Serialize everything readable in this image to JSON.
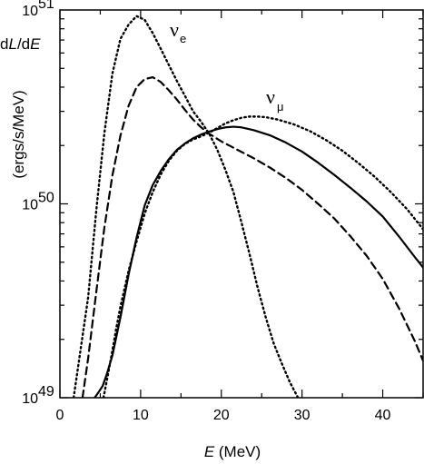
{
  "chart_data": {
    "type": "line",
    "xlabel": {
      "var": "E",
      "rest": " (MeV)"
    },
    "ylabel": {
      "prefix": "d",
      "var1": "L",
      "mid": "/d",
      "var2": "E",
      "units": "(ergs/s/MeV)"
    },
    "xlim": [
      0,
      45
    ],
    "ylim": [
      1e+49,
      1e+51
    ],
    "yscale": "log",
    "grid": false,
    "x_ticks": [
      0,
      10,
      20,
      30,
      40
    ],
    "x_tick_labels": [
      "0",
      "10",
      "20",
      "30",
      "40"
    ],
    "y_ticks": [
      {
        "value": 1e+49,
        "base": "10",
        "exp": "49"
      },
      {
        "value": 1e+50,
        "base": "10",
        "exp": "50"
      },
      {
        "value": 1e+51,
        "base": "10",
        "exp": "51"
      }
    ],
    "series": [
      {
        "label_base": "ν",
        "label_sub": "e",
        "style": "dotted",
        "x": [
          1.7,
          2.5,
          3.5,
          4.5,
          5.5,
          6.5,
          7.5,
          8.5,
          9.5,
          10.5,
          11.5,
          12.5,
          13.5,
          14.5,
          15.5,
          16.5,
          17.5,
          18.5,
          19.5,
          20.5,
          21.5,
          22.5,
          23.5,
          24.5,
          25.5,
          26.5,
          27.5,
          28.5,
          29.5
        ],
        "y": [
          1e+49,
          1.7e+49,
          3.3e+49,
          9.2e+49,
          2.3e+50,
          4.7e+50,
          7.1e+50,
          8.4e+50,
          9.3e+50,
          8.9e+50,
          7.6e+50,
          6.3e+50,
          5.2e+50,
          4.3e+50,
          3.6e+50,
          3e+50,
          2.65e+50,
          2.3e+50,
          1.9e+50,
          1.5e+50,
          1.15e+50,
          8e+49,
          5.5e+49,
          3.7e+49,
          2.6e+49,
          1.9e+49,
          1.5e+49,
          1.2e+49,
          1e+49
        ]
      },
      {
        "style": "dashed",
        "x": [
          2.8,
          3.5,
          4.5,
          5.5,
          6.5,
          7.5,
          8.5,
          9.5,
          10.5,
          11.5,
          12.5,
          13.5,
          14.5,
          15.5,
          16.5,
          17.5,
          18.5,
          20,
          22,
          24,
          26,
          28,
          30,
          32,
          34,
          36,
          38,
          40,
          42,
          44,
          45
        ],
        "y": [
          1e+49,
          1.6e+49,
          3.5e+49,
          7.5e+49,
          1.4e+50,
          2.25e+50,
          3.2e+50,
          4e+50,
          4.4e+50,
          4.5e+50,
          4.25e+50,
          3.85e+50,
          3.45e+50,
          3.05e+50,
          2.72e+50,
          2.48e+50,
          2.3e+50,
          2.1e+50,
          1.9e+50,
          1.72e+50,
          1.54e+50,
          1.36e+50,
          1.18e+50,
          1e+50,
          8.4e+49,
          6.8e+49,
          5.4e+49,
          4.1e+49,
          2.9e+49,
          1.95e+49,
          1.55e+49
        ]
      },
      {
        "style": "solid",
        "x": [
          4.3,
          4.8,
          5.3,
          5.8,
          6.5,
          7.5,
          8.5,
          9.5,
          10.5,
          11.5,
          12.5,
          13.5,
          14.5,
          15.5,
          16.5,
          17.5,
          18.5,
          19.5,
          20.5,
          21.5,
          22.5,
          24,
          26,
          28,
          30,
          32,
          34,
          36,
          38,
          40,
          42,
          44,
          45
        ],
        "y": [
          1e+49,
          1.07e+49,
          1.15e+49,
          1.32e+49,
          1.65e+49,
          2.6e+49,
          4.3e+49,
          6.7e+49,
          9.8e+49,
          1.25e+50,
          1.48e+50,
          1.7e+50,
          1.9e+50,
          2.05e+50,
          2.18e+50,
          2.28e+50,
          2.36e+50,
          2.43e+50,
          2.48e+50,
          2.5e+50,
          2.48e+50,
          2.4e+50,
          2.26e+50,
          2.07e+50,
          1.86e+50,
          1.63e+50,
          1.41e+50,
          1.21e+50,
          1.03e+50,
          8.6e+49,
          6.8e+49,
          5.3e+49,
          4.7e+49
        ]
      },
      {
        "label_base": "ν",
        "label_sub": "μ",
        "style": "dotted",
        "x": [
          5.4,
          6,
          6.5,
          7,
          7.5,
          8.5,
          9.5,
          10.5,
          11.5,
          12.5,
          13.5,
          14.5,
          15.5,
          16.5,
          17.5,
          18.5,
          19.5,
          20.5,
          21.5,
          22.5,
          23.5,
          24.5,
          25.5,
          27,
          29,
          31,
          33,
          35,
          37,
          39,
          41,
          43,
          45
        ],
        "y": [
          1e+49,
          1.35e+49,
          1.75e+49,
          2.3e+49,
          2.95e+49,
          4.5e+49,
          6.4e+49,
          8.9e+49,
          1.15e+50,
          1.42e+50,
          1.67e+50,
          1.88e+50,
          2.04e+50,
          2.15e+50,
          2.23e+50,
          2.33e+50,
          2.46e+50,
          2.6e+50,
          2.7e+50,
          2.78e+50,
          2.82e+50,
          2.82e+50,
          2.8e+50,
          2.72e+50,
          2.57e+50,
          2.37e+50,
          2.13e+50,
          1.88e+50,
          1.62e+50,
          1.38e+50,
          1.15e+50,
          9.4e+49,
          7.4e+49
        ]
      }
    ]
  }
}
